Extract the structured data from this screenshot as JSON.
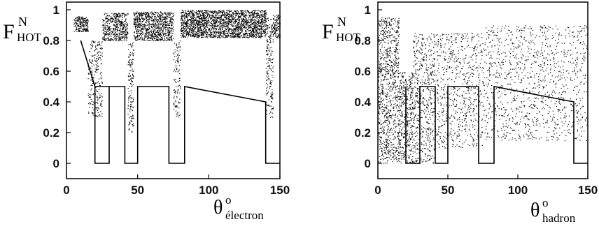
{
  "chart_data": [
    {
      "type": "scatter",
      "title": "",
      "ylabel_main": "F",
      "ylabel_sup": "N",
      "ylabel_sub": "HOT",
      "xlabel_main": "θ",
      "xlabel_sup": "o",
      "xlabel_sub": "électron",
      "xlim": [
        0,
        150
      ],
      "ylim": [
        -0.1,
        1.05
      ],
      "x_ticks": [
        0,
        50,
        100,
        150
      ],
      "x_tick_labels": [
        "0",
        "50",
        "100",
        "150"
      ],
      "y_ticks": [
        0,
        0.2,
        0.4,
        0.6,
        0.8,
        1.0
      ],
      "y_tick_labels": [
        "0",
        "0.2",
        "0.4",
        "0.6",
        "0.8",
        "1"
      ],
      "grid": false,
      "point_color": "#000000",
      "scatter_density": [
        {
          "x_range": [
            5,
            15
          ],
          "y_range": [
            0.86,
            0.96
          ],
          "n": 200
        },
        {
          "x_range": [
            15,
            25
          ],
          "y_range": [
            0.3,
            0.8
          ],
          "n": 250
        },
        {
          "x_range": [
            25,
            33
          ],
          "y_range": [
            0.8,
            0.98
          ],
          "n": 180
        },
        {
          "x_range": [
            33,
            43
          ],
          "y_range": [
            0.8,
            0.98
          ],
          "n": 300
        },
        {
          "x_range": [
            43,
            47
          ],
          "y_range": [
            0.2,
            0.8
          ],
          "n": 150
        },
        {
          "x_range": [
            47,
            75
          ],
          "y_range": [
            0.8,
            0.99
          ],
          "n": 900
        },
        {
          "x_range": [
            75,
            80
          ],
          "y_range": [
            0.3,
            0.8
          ],
          "n": 120
        },
        {
          "x_range": [
            80,
            140
          ],
          "y_range": [
            0.82,
            1.0
          ],
          "n": 2200
        },
        {
          "x_range": [
            140,
            145
          ],
          "y_range": [
            0.3,
            0.95
          ],
          "n": 200
        },
        {
          "x_range": [
            145,
            150
          ],
          "y_range": [
            0.82,
            0.97
          ],
          "n": 120
        }
      ],
      "cut_line": {
        "x": [
          10,
          20,
          20,
          30,
          30,
          20,
          20,
          20,
          41,
          41,
          50,
          50,
          72,
          72,
          83,
          83,
          140,
          140,
          150
        ],
        "y": [
          0.8,
          0.5,
          0.0,
          0.0,
          0.5,
          0.5,
          0.0,
          0.5,
          0.5,
          0.0,
          0.0,
          0.5,
          0.5,
          0.0,
          0.0,
          0.5,
          0.4,
          0.0,
          0.0
        ]
      }
    },
    {
      "type": "scatter",
      "title": "",
      "ylabel_main": "F",
      "ylabel_sup": "N",
      "ylabel_sub": "HOT",
      "xlabel_main": "θ",
      "xlabel_sup": "o",
      "xlabel_sub": "hadron",
      "xlim": [
        0,
        150
      ],
      "ylim": [
        -0.1,
        1.05
      ],
      "x_ticks": [
        0,
        50,
        100,
        150
      ],
      "x_tick_labels": [
        "0",
        "50",
        "100",
        "150"
      ],
      "y_ticks": [
        0,
        0.2,
        0.4,
        0.6,
        0.8,
        1.0
      ],
      "y_tick_labels": [
        "0",
        "0.2",
        "0.4",
        "0.6",
        "0.8",
        "1"
      ],
      "grid": false,
      "point_color": "#000000",
      "scatter_density": [
        {
          "x_range": [
            0,
            15
          ],
          "y_range": [
            0.0,
            0.95
          ],
          "n": 900
        },
        {
          "x_range": [
            15,
            25
          ],
          "y_range": [
            0.0,
            0.6
          ],
          "n": 400
        },
        {
          "x_range": [
            25,
            40
          ],
          "y_range": [
            0.0,
            0.85
          ],
          "n": 500
        },
        {
          "x_range": [
            40,
            75
          ],
          "y_range": [
            0.1,
            0.85
          ],
          "n": 700
        },
        {
          "x_range": [
            75,
            150
          ],
          "y_range": [
            0.15,
            0.9
          ],
          "n": 1100
        }
      ],
      "cut_line": {
        "x": [
          20,
          20,
          30,
          30,
          41,
          41,
          50,
          50,
          72,
          72,
          83,
          83,
          140,
          140,
          150
        ],
        "y": [
          0.5,
          0.0,
          0.0,
          0.5,
          0.5,
          0.0,
          0.0,
          0.5,
          0.5,
          0.0,
          0.0,
          0.5,
          0.4,
          0.0,
          0.0
        ]
      }
    }
  ]
}
